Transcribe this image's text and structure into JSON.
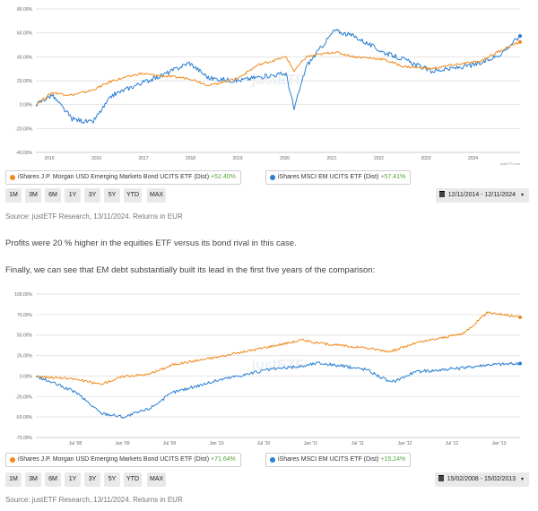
{
  "chart1": {
    "y_ticks": [
      "80.00%",
      "60.00%",
      "40.00%",
      "20.00%",
      "0.00%",
      "-20.00%",
      "-40.00%"
    ],
    "x_ticks": [
      "2015",
      "2016",
      "2017",
      "2018",
      "2019",
      "2020",
      "2021",
      "2022",
      "2023",
      "2024"
    ],
    "watermark": "justETF",
    "credit": "justETF.com",
    "legend": [
      {
        "name": "iShares J.P. Morgan USD Emerging Markets Bond UCITS ETF (Dist)",
        "ret": "+52.40%",
        "color": "#f08a1c"
      },
      {
        "name": "iShares MSCI EM UCITS ETF (Dist)",
        "ret": "+57.41%",
        "color": "#2a7fd1"
      }
    ],
    "ranges": [
      "1M",
      "3M",
      "6M",
      "1Y",
      "3Y",
      "5Y",
      "YTD",
      "MAX"
    ],
    "date_range": "12/11/2014 - 12/11/2024"
  },
  "source1": "Source: justETF Research, 13/11/2024. Returns in EUR",
  "paragraph1": "Profits were 20 % higher in the equities ETF versus its bond rival in this case.",
  "paragraph2": "Finally, we can see that EM debt substantially built its lead in the first five years of the comparison:",
  "chart2": {
    "y_ticks": [
      "100.00%",
      "75.00%",
      "50.00%",
      "25.00%",
      "0.00%",
      "-25.00%",
      "-50.00%",
      "-75.00%"
    ],
    "x_ticks": [
      "Jul '08",
      "Jan '09",
      "Jul '09",
      "Jan '10",
      "Jul '10",
      "Jan '11",
      "Jul '11",
      "Jan '12",
      "Jul '12",
      "Jan '13"
    ],
    "watermark": "justETF",
    "legend": [
      {
        "name": "iShares J.P. Morgan USD Emerging Markets Bond UCITS ETF (Dist)",
        "ret": "+71.64%",
        "color": "#f08a1c"
      },
      {
        "name": "iShares MSCI EM UCITS ETF (Dist)",
        "ret": "+15.24%",
        "color": "#2a7fd1"
      }
    ],
    "ranges": [
      "1M",
      "3M",
      "6M",
      "1Y",
      "3Y",
      "5Y",
      "YTD",
      "MAX"
    ],
    "date_range": "15/02/2008 - 15/02/2013"
  },
  "source2": "Source: justETF Research, 13/11/2024. Returns in EUR",
  "chart_data": [
    {
      "type": "line",
      "x": [
        "2014-11",
        "2015-03",
        "2015-08",
        "2016-01",
        "2016-06",
        "2017-01",
        "2017-06",
        "2018-01",
        "2018-06",
        "2019-01",
        "2019-06",
        "2020-01",
        "2020-03",
        "2020-06",
        "2021-01",
        "2021-06",
        "2022-01",
        "2022-06",
        "2023-01",
        "2023-06",
        "2024-01",
        "2024-06",
        "2024-11"
      ],
      "series": [
        {
          "name": "iShares J.P. Morgan USD Emerging Markets Bond UCITS ETF (Dist)",
          "values": [
            0,
            10,
            8,
            12,
            20,
            26,
            24,
            22,
            16,
            22,
            33,
            40,
            28,
            40,
            44,
            40,
            38,
            32,
            30,
            33,
            36,
            45,
            52.4
          ]
        },
        {
          "name": "iShares MSCI EM UCITS ETF (Dist)",
          "values": [
            0,
            8,
            -12,
            -15,
            8,
            18,
            24,
            35,
            22,
            20,
            23,
            26,
            -4,
            32,
            62,
            57,
            44,
            38,
            28,
            30,
            34,
            42,
            57.41
          ]
        }
      ],
      "ylim": [
        -40,
        80
      ]
    },
    {
      "type": "line",
      "x": [
        "2008-02",
        "2008-07",
        "2008-10",
        "2009-01",
        "2009-04",
        "2009-07",
        "2010-01",
        "2010-07",
        "2010-11",
        "2011-01",
        "2011-07",
        "2011-10",
        "2012-01",
        "2012-07",
        "2012-10",
        "2013-02"
      ],
      "series": [
        {
          "name": "iShares J.P. Morgan USD Emerging Markets Bond UCITS ETF (Dist)",
          "values": [
            0,
            -4,
            -10,
            0,
            2,
            14,
            24,
            36,
            44,
            40,
            34,
            30,
            40,
            52,
            78,
            71.64
          ]
        },
        {
          "name": "iShares MSCI EM UCITS ETF (Dist)",
          "values": [
            0,
            -20,
            -45,
            -50,
            -40,
            -20,
            -4,
            8,
            12,
            16,
            8,
            -8,
            5,
            10,
            14,
            15.24
          ]
        }
      ],
      "ylim": [
        -75,
        100
      ]
    }
  ]
}
